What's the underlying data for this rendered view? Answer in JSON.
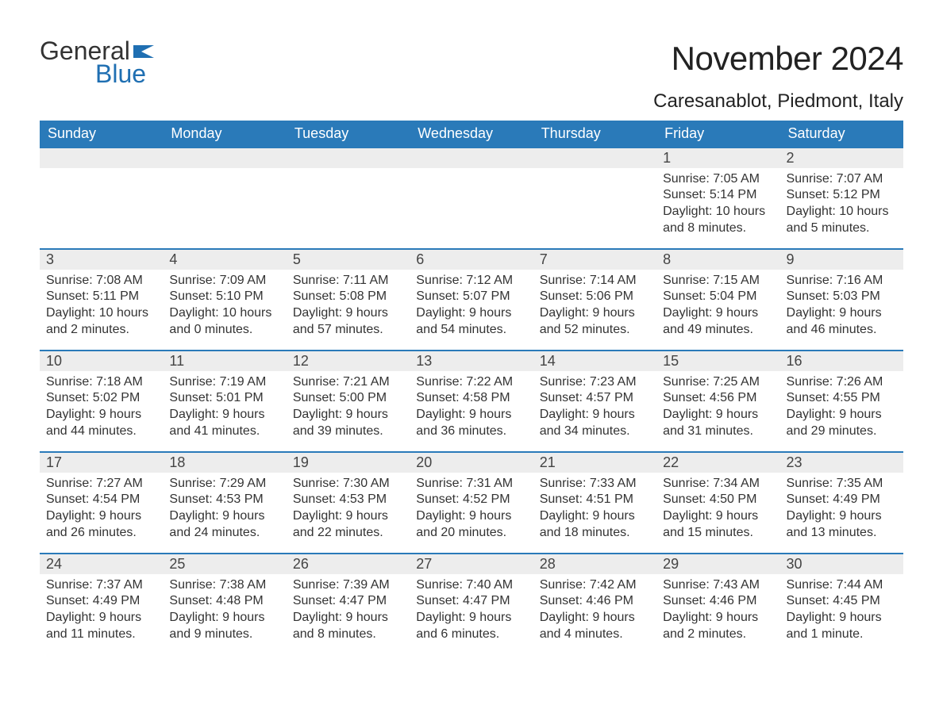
{
  "logo": {
    "text1": "General",
    "text2": "Blue",
    "flag_color": "#1f6fb2"
  },
  "title": "November 2024",
  "location": "Caresanablot, Piedmont, Italy",
  "colors": {
    "header_bg": "#2a7ab9",
    "header_text": "#ffffff",
    "daynum_bg": "#ededed",
    "rule": "#2a7ab9",
    "body_text": "#333333",
    "page_bg": "#ffffff"
  },
  "typography": {
    "title_fontsize": 42,
    "location_fontsize": 24,
    "header_fontsize": 18,
    "daynum_fontsize": 18,
    "body_fontsize": 16
  },
  "weekdays": [
    "Sunday",
    "Monday",
    "Tuesday",
    "Wednesday",
    "Thursday",
    "Friday",
    "Saturday"
  ],
  "weeks": [
    [
      {
        "empty": true
      },
      {
        "empty": true
      },
      {
        "empty": true
      },
      {
        "empty": true
      },
      {
        "empty": true
      },
      {
        "day": "1",
        "sunrise": "Sunrise: 7:05 AM",
        "sunset": "Sunset: 5:14 PM",
        "daylight": "Daylight: 10 hours and 8 minutes."
      },
      {
        "day": "2",
        "sunrise": "Sunrise: 7:07 AM",
        "sunset": "Sunset: 5:12 PM",
        "daylight": "Daylight: 10 hours and 5 minutes."
      }
    ],
    [
      {
        "day": "3",
        "sunrise": "Sunrise: 7:08 AM",
        "sunset": "Sunset: 5:11 PM",
        "daylight": "Daylight: 10 hours and 2 minutes."
      },
      {
        "day": "4",
        "sunrise": "Sunrise: 7:09 AM",
        "sunset": "Sunset: 5:10 PM",
        "daylight": "Daylight: 10 hours and 0 minutes."
      },
      {
        "day": "5",
        "sunrise": "Sunrise: 7:11 AM",
        "sunset": "Sunset: 5:08 PM",
        "daylight": "Daylight: 9 hours and 57 minutes."
      },
      {
        "day": "6",
        "sunrise": "Sunrise: 7:12 AM",
        "sunset": "Sunset: 5:07 PM",
        "daylight": "Daylight: 9 hours and 54 minutes."
      },
      {
        "day": "7",
        "sunrise": "Sunrise: 7:14 AM",
        "sunset": "Sunset: 5:06 PM",
        "daylight": "Daylight: 9 hours and 52 minutes."
      },
      {
        "day": "8",
        "sunrise": "Sunrise: 7:15 AM",
        "sunset": "Sunset: 5:04 PM",
        "daylight": "Daylight: 9 hours and 49 minutes."
      },
      {
        "day": "9",
        "sunrise": "Sunrise: 7:16 AM",
        "sunset": "Sunset: 5:03 PM",
        "daylight": "Daylight: 9 hours and 46 minutes."
      }
    ],
    [
      {
        "day": "10",
        "sunrise": "Sunrise: 7:18 AM",
        "sunset": "Sunset: 5:02 PM",
        "daylight": "Daylight: 9 hours and 44 minutes."
      },
      {
        "day": "11",
        "sunrise": "Sunrise: 7:19 AM",
        "sunset": "Sunset: 5:01 PM",
        "daylight": "Daylight: 9 hours and 41 minutes."
      },
      {
        "day": "12",
        "sunrise": "Sunrise: 7:21 AM",
        "sunset": "Sunset: 5:00 PM",
        "daylight": "Daylight: 9 hours and 39 minutes."
      },
      {
        "day": "13",
        "sunrise": "Sunrise: 7:22 AM",
        "sunset": "Sunset: 4:58 PM",
        "daylight": "Daylight: 9 hours and 36 minutes."
      },
      {
        "day": "14",
        "sunrise": "Sunrise: 7:23 AM",
        "sunset": "Sunset: 4:57 PM",
        "daylight": "Daylight: 9 hours and 34 minutes."
      },
      {
        "day": "15",
        "sunrise": "Sunrise: 7:25 AM",
        "sunset": "Sunset: 4:56 PM",
        "daylight": "Daylight: 9 hours and 31 minutes."
      },
      {
        "day": "16",
        "sunrise": "Sunrise: 7:26 AM",
        "sunset": "Sunset: 4:55 PM",
        "daylight": "Daylight: 9 hours and 29 minutes."
      }
    ],
    [
      {
        "day": "17",
        "sunrise": "Sunrise: 7:27 AM",
        "sunset": "Sunset: 4:54 PM",
        "daylight": "Daylight: 9 hours and 26 minutes."
      },
      {
        "day": "18",
        "sunrise": "Sunrise: 7:29 AM",
        "sunset": "Sunset: 4:53 PM",
        "daylight": "Daylight: 9 hours and 24 minutes."
      },
      {
        "day": "19",
        "sunrise": "Sunrise: 7:30 AM",
        "sunset": "Sunset: 4:53 PM",
        "daylight": "Daylight: 9 hours and 22 minutes."
      },
      {
        "day": "20",
        "sunrise": "Sunrise: 7:31 AM",
        "sunset": "Sunset: 4:52 PM",
        "daylight": "Daylight: 9 hours and 20 minutes."
      },
      {
        "day": "21",
        "sunrise": "Sunrise: 7:33 AM",
        "sunset": "Sunset: 4:51 PM",
        "daylight": "Daylight: 9 hours and 18 minutes."
      },
      {
        "day": "22",
        "sunrise": "Sunrise: 7:34 AM",
        "sunset": "Sunset: 4:50 PM",
        "daylight": "Daylight: 9 hours and 15 minutes."
      },
      {
        "day": "23",
        "sunrise": "Sunrise: 7:35 AM",
        "sunset": "Sunset: 4:49 PM",
        "daylight": "Daylight: 9 hours and 13 minutes."
      }
    ],
    [
      {
        "day": "24",
        "sunrise": "Sunrise: 7:37 AM",
        "sunset": "Sunset: 4:49 PM",
        "daylight": "Daylight: 9 hours and 11 minutes."
      },
      {
        "day": "25",
        "sunrise": "Sunrise: 7:38 AM",
        "sunset": "Sunset: 4:48 PM",
        "daylight": "Daylight: 9 hours and 9 minutes."
      },
      {
        "day": "26",
        "sunrise": "Sunrise: 7:39 AM",
        "sunset": "Sunset: 4:47 PM",
        "daylight": "Daylight: 9 hours and 8 minutes."
      },
      {
        "day": "27",
        "sunrise": "Sunrise: 7:40 AM",
        "sunset": "Sunset: 4:47 PM",
        "daylight": "Daylight: 9 hours and 6 minutes."
      },
      {
        "day": "28",
        "sunrise": "Sunrise: 7:42 AM",
        "sunset": "Sunset: 4:46 PM",
        "daylight": "Daylight: 9 hours and 4 minutes."
      },
      {
        "day": "29",
        "sunrise": "Sunrise: 7:43 AM",
        "sunset": "Sunset: 4:46 PM",
        "daylight": "Daylight: 9 hours and 2 minutes."
      },
      {
        "day": "30",
        "sunrise": "Sunrise: 7:44 AM",
        "sunset": "Sunset: 4:45 PM",
        "daylight": "Daylight: 9 hours and 1 minute."
      }
    ]
  ]
}
